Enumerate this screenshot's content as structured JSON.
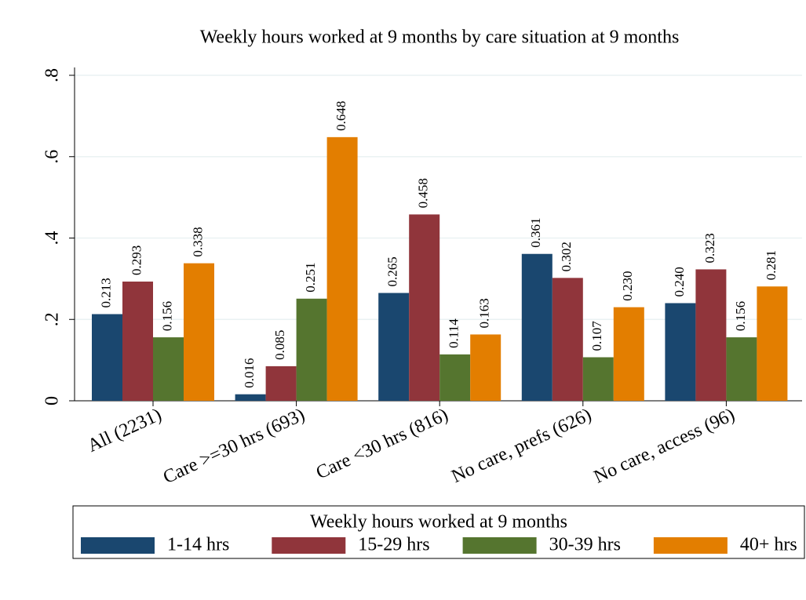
{
  "chart_data": {
    "type": "bar",
    "title": "Weekly hours worked at 9 months by care situation at 9 months",
    "categories": [
      "All (2231)",
      "Care >=30 hrs (693)",
      "Care <30 hrs (816)",
      "No care, prefs (626)",
      "No care, access (96)"
    ],
    "series": [
      {
        "name": "1-14 hrs",
        "color": "#1a476f",
        "values": [
          0.213,
          0.016,
          0.265,
          0.361,
          0.24
        ],
        "value_labels": [
          "0.213",
          "0.016",
          "0.265",
          "0.361",
          "0.240"
        ]
      },
      {
        "name": "15-29 hrs",
        "color": "#90353b",
        "values": [
          0.293,
          0.085,
          0.458,
          0.302,
          0.323
        ],
        "value_labels": [
          "0.293",
          "0.085",
          "0.458",
          "0.302",
          "0.323"
        ]
      },
      {
        "name": "30-39 hrs",
        "color": "#55752f",
        "values": [
          0.156,
          0.251,
          0.114,
          0.107,
          0.156
        ],
        "value_labels": [
          "0.156",
          "0.251",
          "0.114",
          "0.107",
          "0.156"
        ]
      },
      {
        "name": "40+ hrs",
        "color": "#e37e00",
        "values": [
          0.338,
          0.648,
          0.163,
          0.23,
          0.281
        ],
        "value_labels": [
          "0.338",
          "0.648",
          "0.163",
          "0.230",
          "0.281"
        ]
      }
    ],
    "legend_title": "Weekly hours worked at 9 months",
    "ylim": [
      0,
      0.8
    ],
    "yticks": [
      0,
      {
        "value": 0.2,
        "label": ".2"
      },
      {
        "value": 0.4,
        "label": ".4"
      },
      {
        "value": 0.6,
        "label": ".6"
      },
      {
        "value": 0.8,
        "label": ".8"
      }
    ],
    "grid": true,
    "legend": "bottom"
  }
}
